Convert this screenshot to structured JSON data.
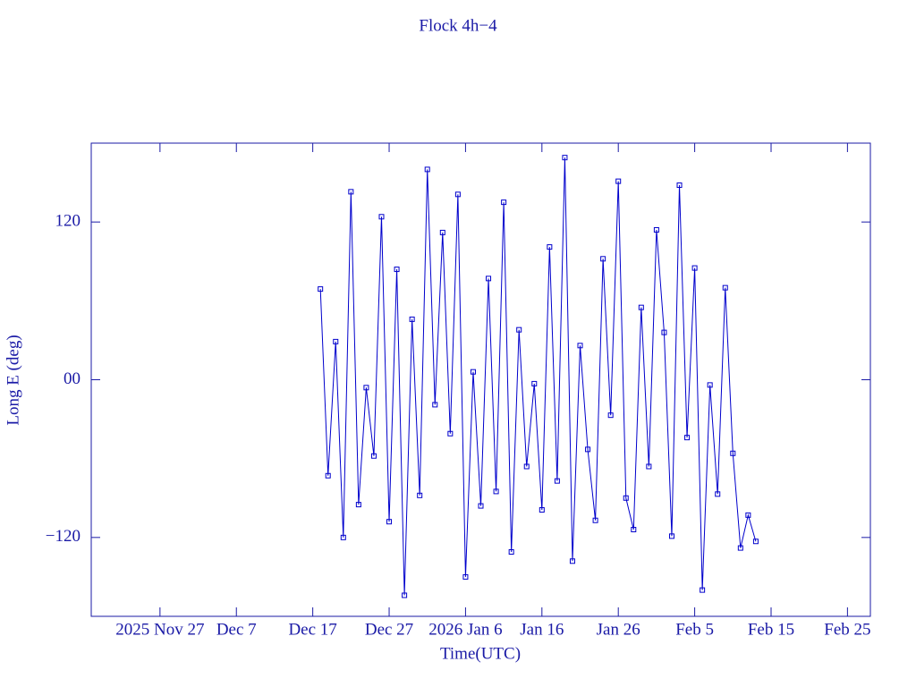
{
  "chart_data": {
    "type": "line",
    "title": "Flock 4h−4",
    "x_label": "Time(UTC)",
    "y_label": "Long E (deg)",
    "x": [
      "2025-12-18",
      "2025-12-19",
      "2025-12-20",
      "2025-12-21",
      "2025-12-22",
      "2025-12-23",
      "2025-12-24",
      "2025-12-25",
      "2025-12-26",
      "2025-12-27",
      "2025-12-28",
      "2025-12-29",
      "2025-12-30",
      "2025-12-31",
      "2026-01-01",
      "2026-01-02",
      "2026-01-03",
      "2026-01-04",
      "2026-01-05",
      "2026-01-06",
      "2026-01-07",
      "2026-01-08",
      "2026-01-09",
      "2026-01-10",
      "2026-01-11",
      "2026-01-12",
      "2026-01-13",
      "2026-01-14",
      "2026-01-15",
      "2026-01-16",
      "2026-01-17",
      "2026-01-18",
      "2026-01-19",
      "2026-01-20",
      "2026-01-21",
      "2026-01-22",
      "2026-01-23",
      "2026-01-24",
      "2026-01-25",
      "2026-01-26",
      "2026-01-27",
      "2026-01-28",
      "2026-01-29",
      "2026-01-30",
      "2026-01-31",
      "2026-02-01",
      "2026-02-02",
      "2026-02-03",
      "2026-02-04",
      "2026-02-05",
      "2026-02-06",
      "2026-02-07",
      "2026-02-08",
      "2026-02-09",
      "2026-02-10",
      "2026-02-11",
      "2026-02-12",
      "2026-02-13"
    ],
    "series": [
      {
        "color": "#0000cc",
        "values": [
          69,
          -73,
          29,
          -120,
          143,
          -95,
          -6,
          -58,
          124,
          -108,
          84,
          -164,
          46,
          -88,
          160,
          -19,
          112,
          -41,
          141,
          -150,
          6,
          -96,
          77,
          -85,
          135,
          -131,
          38,
          -66,
          -3,
          -99,
          101,
          -77,
          169,
          -138,
          26,
          -53,
          -107,
          92,
          -27,
          151,
          -90,
          -114,
          55,
          -66,
          114,
          36,
          -119,
          148,
          -44,
          85,
          -160,
          -4,
          -87,
          70,
          -56,
          -128,
          -103,
          -123
        ]
      }
    ],
    "xlim": [
      "2025-11-18",
      "2026-02-28"
    ],
    "xticks": [
      {
        "value": "2025-11-27",
        "label": "2025 Nov 27"
      },
      {
        "value": "2025-12-07",
        "label": "Dec  7"
      },
      {
        "value": "2025-12-17",
        "label": "Dec 17"
      },
      {
        "value": "2025-12-27",
        "label": "Dec 27"
      },
      {
        "value": "2026-01-06",
        "label": "2026 Jan  6"
      },
      {
        "value": "2026-01-16",
        "label": "Jan 16"
      },
      {
        "value": "2026-01-26",
        "label": "Jan 26"
      },
      {
        "value": "2026-02-05",
        "label": "Feb  5"
      },
      {
        "value": "2026-02-15",
        "label": "Feb 15"
      },
      {
        "value": "2026-02-25",
        "label": "Feb 25"
      }
    ],
    "ylim": [
      -180,
      180
    ],
    "yticks": [
      {
        "value": -120,
        "label": "−120"
      },
      {
        "value": 0,
        "label": "00"
      },
      120
    ],
    "markers": true
  }
}
